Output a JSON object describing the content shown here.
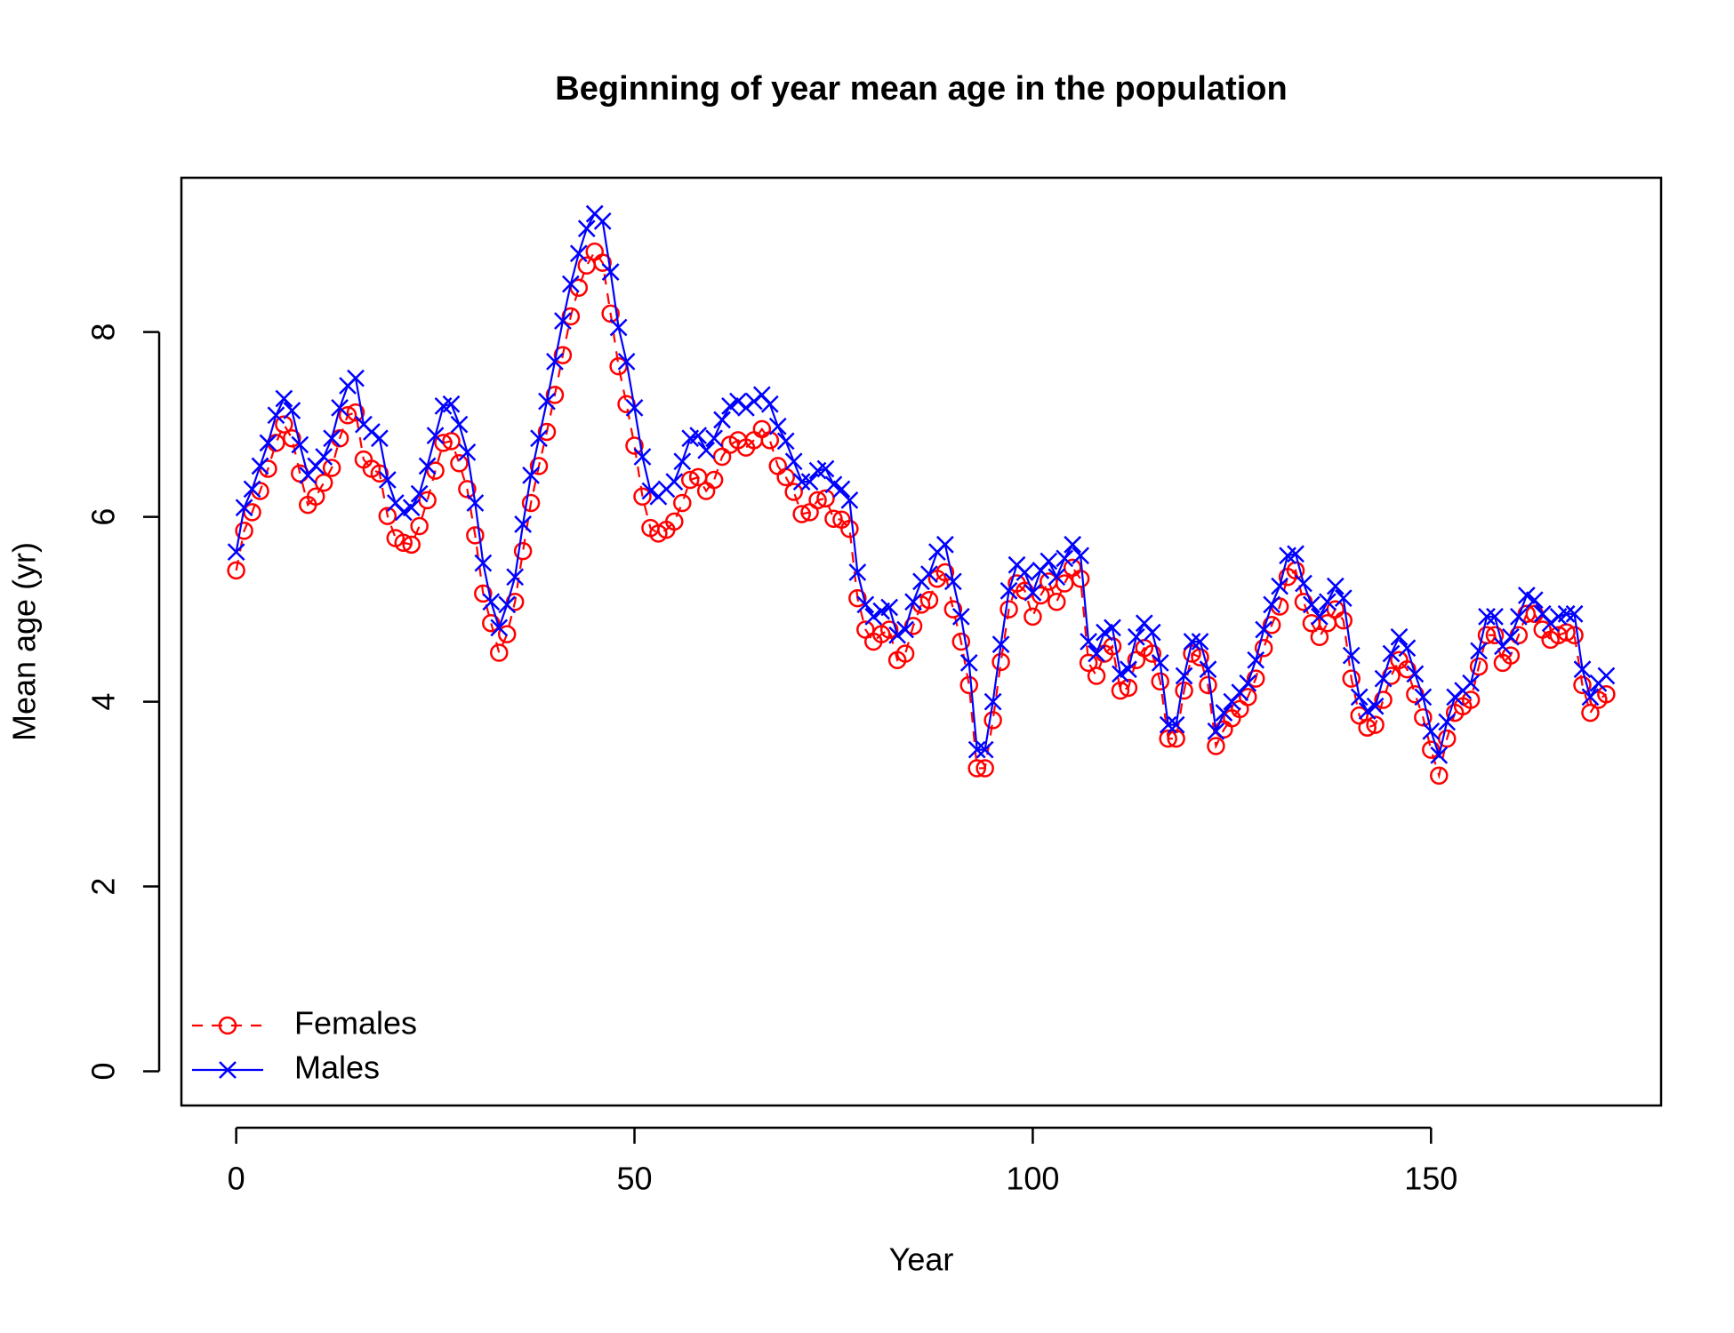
{
  "chart_data": {
    "type": "line",
    "title": "Beginning of year mean age in the population",
    "xlabel": "Year",
    "ylabel": "Mean age (yr)",
    "x": [
      0,
      1,
      2,
      3,
      4,
      5,
      6,
      7,
      8,
      9,
      10,
      11,
      12,
      13,
      14,
      15,
      16,
      17,
      18,
      19,
      20,
      21,
      22,
      23,
      24,
      25,
      26,
      27,
      28,
      29,
      30,
      31,
      32,
      33,
      34,
      35,
      36,
      37,
      38,
      39,
      40,
      41,
      42,
      43,
      44,
      45,
      46,
      47,
      48,
      49,
      50,
      51,
      52,
      53,
      54,
      55,
      56,
      57,
      58,
      59,
      60,
      61,
      62,
      63,
      64,
      65,
      66,
      67,
      68,
      69,
      70,
      71,
      72,
      73,
      74,
      75,
      76,
      77,
      78,
      79,
      80,
      81,
      82,
      83,
      84,
      85,
      86,
      87,
      88,
      89,
      90,
      91,
      92,
      93,
      94,
      95,
      96,
      97,
      98,
      99,
      100,
      101,
      102,
      103,
      104,
      105,
      106,
      107,
      108,
      109,
      110,
      111,
      112,
      113,
      114,
      115,
      116,
      117,
      118,
      119,
      120,
      121,
      122,
      123,
      124,
      125,
      126,
      127,
      128,
      129,
      130,
      131,
      132,
      133,
      134,
      135,
      136,
      137,
      138,
      139,
      140,
      141,
      142,
      143,
      144,
      145,
      146,
      147,
      148,
      149,
      150,
      151,
      152,
      153,
      154,
      155,
      156,
      157,
      158,
      159,
      160,
      161,
      162,
      163,
      164,
      165,
      166,
      167,
      168,
      169,
      170,
      171,
      172
    ],
    "series": [
      {
        "name": "Females",
        "color": "#ff0000",
        "linestyle": "dashed",
        "marker": "circle",
        "values": [
          5.42,
          5.85,
          6.05,
          6.28,
          6.52,
          6.8,
          7.0,
          6.85,
          6.47,
          6.13,
          6.22,
          6.37,
          6.53,
          6.85,
          7.1,
          7.13,
          6.62,
          6.52,
          6.47,
          6.01,
          5.77,
          5.72,
          5.7,
          5.9,
          6.18,
          6.5,
          6.8,
          6.82,
          6.58,
          6.3,
          5.8,
          5.17,
          4.85,
          4.53,
          4.73,
          5.08,
          5.63,
          6.15,
          6.55,
          6.92,
          7.32,
          7.75,
          8.17,
          8.48,
          8.72,
          8.87,
          8.75,
          8.2,
          7.63,
          7.22,
          6.77,
          6.22,
          5.88,
          5.82,
          5.86,
          5.95,
          6.15,
          6.4,
          6.43,
          6.28,
          6.4,
          6.65,
          6.78,
          6.83,
          6.75,
          6.83,
          6.95,
          6.83,
          6.55,
          6.43,
          6.27,
          6.03,
          6.05,
          6.18,
          6.2,
          5.98,
          5.97,
          5.87,
          5.12,
          4.78,
          4.65,
          4.73,
          4.78,
          4.45,
          4.52,
          4.82,
          5.05,
          5.1,
          5.33,
          5.4,
          5.0,
          4.65,
          4.18,
          3.28,
          3.28,
          3.8,
          4.43,
          5.0,
          5.28,
          5.2,
          4.92,
          5.15,
          5.3,
          5.08,
          5.28,
          5.45,
          5.33,
          4.42,
          4.28,
          4.52,
          4.6,
          4.12,
          4.15,
          4.45,
          4.58,
          4.52,
          4.22,
          3.6,
          3.6,
          4.12,
          4.52,
          4.48,
          4.18,
          3.52,
          3.7,
          3.82,
          3.92,
          4.05,
          4.25,
          4.58,
          4.83,
          5.03,
          5.35,
          5.42,
          5.08,
          4.85,
          4.7,
          4.85,
          5.0,
          4.88,
          4.25,
          3.85,
          3.72,
          3.75,
          4.02,
          4.28,
          4.45,
          4.35,
          4.08,
          3.83,
          3.48,
          3.2,
          3.6,
          3.88,
          3.95,
          4.02,
          4.38,
          4.72,
          4.72,
          4.42,
          4.5,
          4.72,
          4.95,
          4.95,
          4.78,
          4.67,
          4.72,
          4.75,
          4.72,
          4.18,
          3.88,
          4.02,
          4.08
        ]
      },
      {
        "name": "Males",
        "color": "#0000ff",
        "linestyle": "solid",
        "marker": "x",
        "values": [
          5.62,
          6.1,
          6.3,
          6.55,
          6.8,
          7.1,
          7.28,
          7.15,
          6.78,
          6.45,
          6.55,
          6.65,
          6.85,
          7.18,
          7.42,
          7.5,
          7.0,
          6.92,
          6.85,
          6.4,
          6.15,
          6.05,
          6.1,
          6.25,
          6.55,
          6.88,
          7.2,
          7.22,
          7.0,
          6.7,
          6.15,
          5.5,
          5.08,
          4.8,
          5.05,
          5.35,
          5.92,
          6.45,
          6.85,
          7.25,
          7.68,
          8.12,
          8.52,
          8.85,
          9.12,
          9.28,
          9.2,
          8.65,
          8.05,
          7.68,
          7.18,
          6.65,
          6.28,
          6.22,
          6.3,
          6.38,
          6.6,
          6.85,
          6.88,
          6.72,
          6.85,
          7.05,
          7.2,
          7.25,
          7.18,
          7.25,
          7.32,
          7.22,
          6.98,
          6.82,
          6.6,
          6.38,
          6.38,
          6.5,
          6.52,
          6.35,
          6.3,
          6.18,
          5.4,
          5.05,
          4.92,
          4.98,
          5.02,
          4.72,
          4.78,
          5.08,
          5.3,
          5.38,
          5.62,
          5.7,
          5.3,
          4.92,
          4.42,
          3.48,
          3.48,
          4.0,
          4.62,
          5.2,
          5.48,
          5.4,
          5.18,
          5.42,
          5.52,
          5.35,
          5.55,
          5.7,
          5.58,
          4.65,
          4.52,
          4.75,
          4.8,
          4.3,
          4.35,
          4.7,
          4.85,
          4.75,
          4.42,
          3.75,
          3.75,
          4.28,
          4.65,
          4.65,
          4.35,
          3.68,
          3.88,
          4.0,
          4.1,
          4.2,
          4.45,
          4.78,
          5.05,
          5.25,
          5.58,
          5.6,
          5.28,
          5.05,
          4.92,
          5.08,
          5.25,
          5.12,
          4.5,
          4.05,
          3.9,
          3.95,
          4.25,
          4.52,
          4.7,
          4.58,
          4.3,
          4.05,
          3.68,
          3.42,
          3.78,
          4.05,
          4.12,
          4.2,
          4.55,
          4.92,
          4.92,
          4.6,
          4.7,
          4.92,
          5.15,
          5.1,
          4.95,
          4.85,
          4.92,
          4.95,
          4.95,
          4.35,
          4.05,
          4.2,
          4.28
        ]
      }
    ],
    "xlim": [
      -6.88,
      178.88
    ],
    "xticks": [
      0,
      50,
      100,
      150
    ],
    "ylim": [
      -0.37,
      9.67
    ],
    "yticks": [
      0,
      2,
      4,
      6,
      8
    ],
    "legend": "bottomleft",
    "grid": false
  }
}
